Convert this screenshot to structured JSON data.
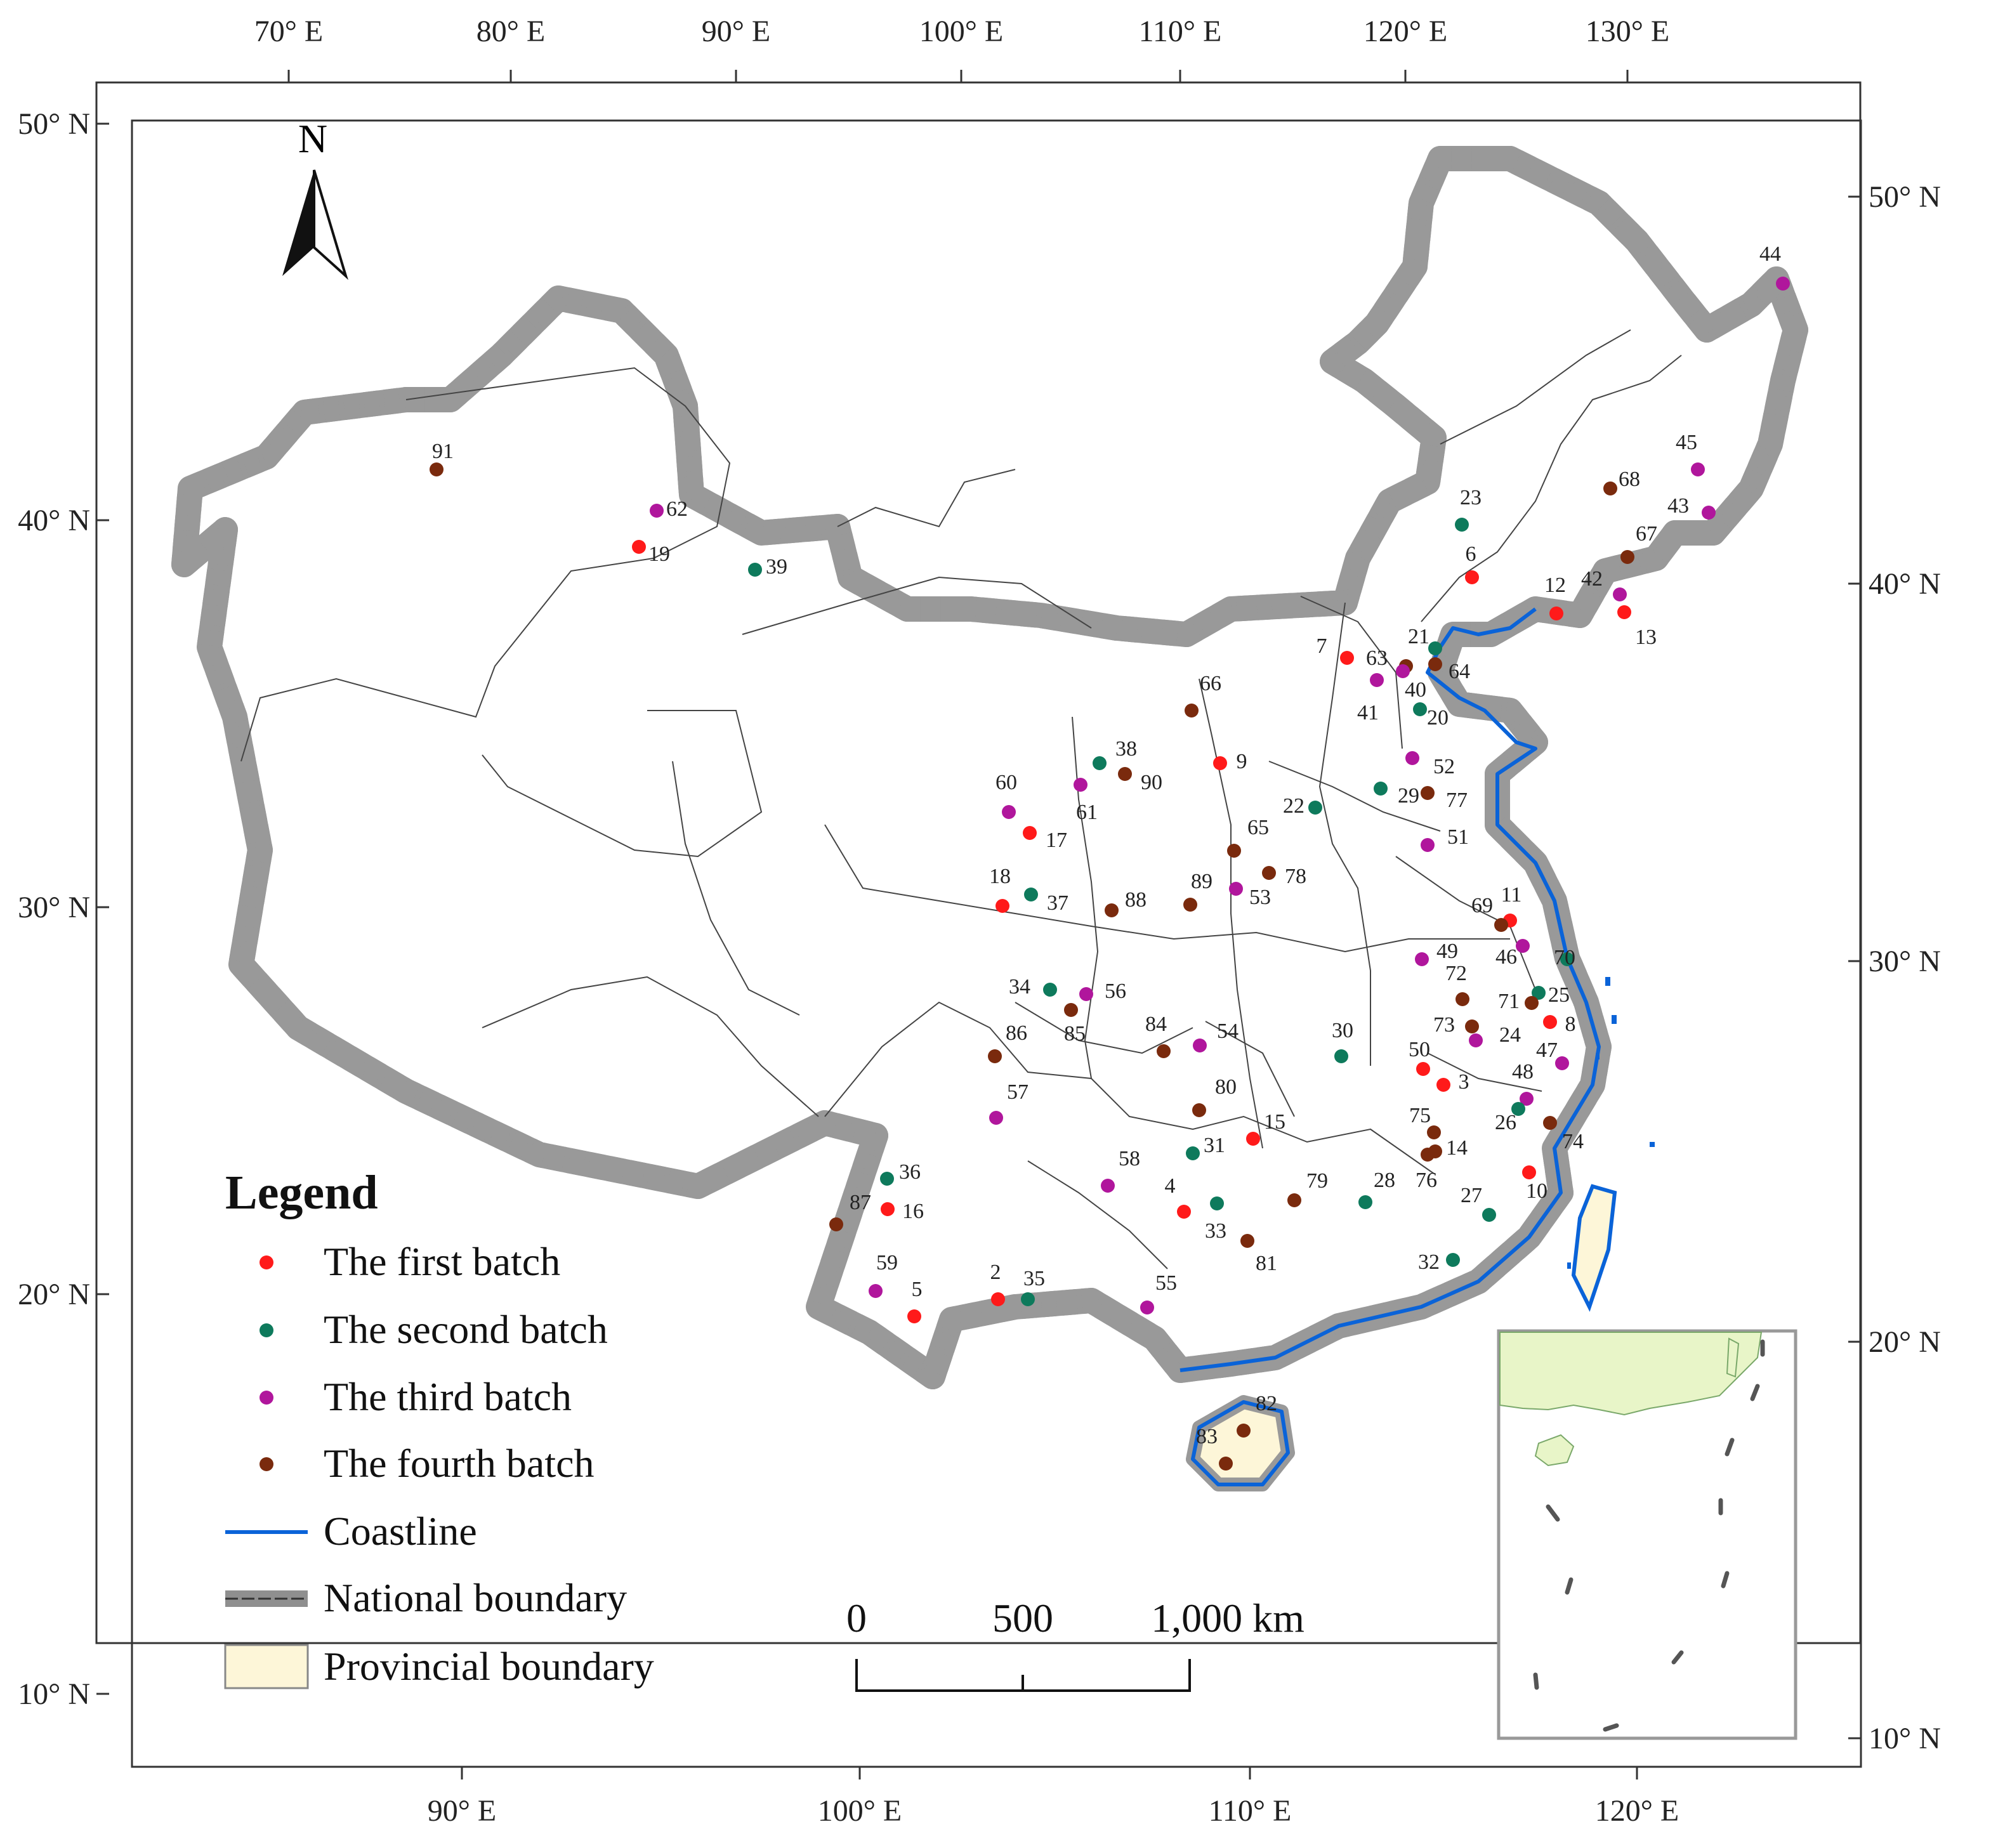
{
  "map": {
    "top_ticks": [
      "70° E",
      "80° E",
      "90° E",
      "100° E",
      "110° E",
      "120° E",
      "130° E"
    ],
    "bottom_ticks": [
      "90° E",
      "100° E",
      "110° E",
      "120° E"
    ],
    "left_ticks": [
      "50° N",
      "40° N",
      "30° N",
      "20° N",
      "10° N"
    ],
    "right_ticks": [
      "50° N",
      "40° N",
      "30° N",
      "20° N",
      "10° N"
    ],
    "north_label": "N"
  },
  "legend": {
    "title": "Legend",
    "items": [
      {
        "label": "The first batch",
        "color": "#ff1a1a",
        "kind": "dot"
      },
      {
        "label": "The second batch",
        "color": "#0e7a5c",
        "kind": "dot"
      },
      {
        "label": "The third batch",
        "color": "#b0169c",
        "kind": "dot"
      },
      {
        "label": "The fourth batch",
        "color": "#7a2a0d",
        "kind": "dot"
      },
      {
        "label": "Coastline",
        "color": "#0a63d8",
        "kind": "line"
      },
      {
        "label": "National boundary",
        "color": "#8f8f8f",
        "kind": "boundary"
      },
      {
        "label": "Provincial boundary",
        "color": "#fdf6d8",
        "kind": "box"
      }
    ]
  },
  "scale_bar": {
    "labels": [
      "0",
      "500",
      "1,000 km"
    ]
  },
  "colors": {
    "land": "#fdf6d8",
    "national": "#8f8f8f",
    "coast": "#0a63d8",
    "inset_land": "#e8f5c8",
    "batch1": "#ff1a1a",
    "batch2": "#0e7a5c",
    "batch3": "#b0169c",
    "batch4": "#7a2a0d"
  },
  "sites": [
    {
      "n": "91",
      "b": 4
    },
    {
      "n": "62",
      "b": 3
    },
    {
      "n": "19",
      "b": 1
    },
    {
      "n": "39",
      "b": 2
    },
    {
      "n": "44",
      "b": 3
    },
    {
      "n": "68",
      "b": 4
    },
    {
      "n": "45",
      "b": 3
    },
    {
      "n": "43",
      "b": 3
    },
    {
      "n": "23",
      "b": 2
    },
    {
      "n": "67",
      "b": 4
    },
    {
      "n": "6",
      "b": 1
    },
    {
      "n": "42",
      "b": 3
    },
    {
      "n": "12",
      "b": 1
    },
    {
      "n": "13",
      "b": 1
    },
    {
      "n": "7",
      "b": 1
    },
    {
      "n": "63",
      "b": 4
    },
    {
      "n": "21",
      "b": 2
    },
    {
      "n": "64",
      "b": 4
    },
    {
      "n": "40",
      "b": 3
    },
    {
      "n": "41",
      "b": 3
    },
    {
      "n": "20",
      "b": 2
    },
    {
      "n": "66",
      "b": 4
    },
    {
      "n": "9",
      "b": 1
    },
    {
      "n": "38",
      "b": 2
    },
    {
      "n": "61",
      "b": 3
    },
    {
      "n": "90",
      "b": 4
    },
    {
      "n": "60",
      "b": 3
    },
    {
      "n": "17",
      "b": 1
    },
    {
      "n": "52",
      "b": 3
    },
    {
      "n": "29",
      "b": 2
    },
    {
      "n": "77",
      "b": 4
    },
    {
      "n": "22",
      "b": 2
    },
    {
      "n": "65",
      "b": 4
    },
    {
      "n": "51",
      "b": 3
    },
    {
      "n": "18",
      "b": 1
    },
    {
      "n": "37",
      "b": 2
    },
    {
      "n": "88",
      "b": 4
    },
    {
      "n": "89",
      "b": 4
    },
    {
      "n": "53",
      "b": 3
    },
    {
      "n": "78",
      "b": 4
    },
    {
      "n": "11",
      "b": 1
    },
    {
      "n": "69",
      "b": 4
    },
    {
      "n": "46",
      "b": 3
    },
    {
      "n": "70",
      "b": 2
    },
    {
      "n": "49",
      "b": 3
    },
    {
      "n": "72",
      "b": 4
    },
    {
      "n": "25",
      "b": 2
    },
    {
      "n": "71",
      "b": 4
    },
    {
      "n": "8",
      "b": 1
    },
    {
      "n": "34",
      "b": 2
    },
    {
      "n": "56",
      "b": 3
    },
    {
      "n": "85",
      "b": 4
    },
    {
      "n": "86",
      "b": 4
    },
    {
      "n": "84",
      "b": 4
    },
    {
      "n": "54",
      "b": 3
    },
    {
      "n": "30",
      "b": 2
    },
    {
      "n": "73",
      "b": 4
    },
    {
      "n": "24",
      "b": 3
    },
    {
      "n": "50",
      "b": 1
    },
    {
      "n": "47",
      "b": 3
    },
    {
      "n": "3",
      "b": 1
    },
    {
      "n": "48",
      "b": 3
    },
    {
      "n": "80",
      "b": 4
    },
    {
      "n": "57",
      "b": 3
    },
    {
      "n": "15",
      "b": 1
    },
    {
      "n": "75",
      "b": 4
    },
    {
      "n": "26",
      "b": 2
    },
    {
      "n": "74",
      "b": 4
    },
    {
      "n": "14",
      "b": 4
    },
    {
      "n": "58",
      "b": 3
    },
    {
      "n": "31",
      "b": 2
    },
    {
      "n": "76",
      "b": 4
    },
    {
      "n": "79",
      "b": 4
    },
    {
      "n": "28",
      "b": 2
    },
    {
      "n": "10",
      "b": 1
    },
    {
      "n": "36",
      "b": 2
    },
    {
      "n": "4",
      "b": 1
    },
    {
      "n": "33",
      "b": 2
    },
    {
      "n": "27",
      "b": 2
    },
    {
      "n": "87",
      "b": 4
    },
    {
      "n": "16",
      "b": 1
    },
    {
      "n": "81",
      "b": 4
    },
    {
      "n": "32",
      "b": 2
    },
    {
      "n": "59",
      "b": 3
    },
    {
      "n": "5",
      "b": 1
    },
    {
      "n": "2",
      "b": 1
    },
    {
      "n": "35",
      "b": 2
    },
    {
      "n": "55",
      "b": 3
    },
    {
      "n": "82",
      "b": 4
    },
    {
      "n": "83",
      "b": 4
    }
  ]
}
